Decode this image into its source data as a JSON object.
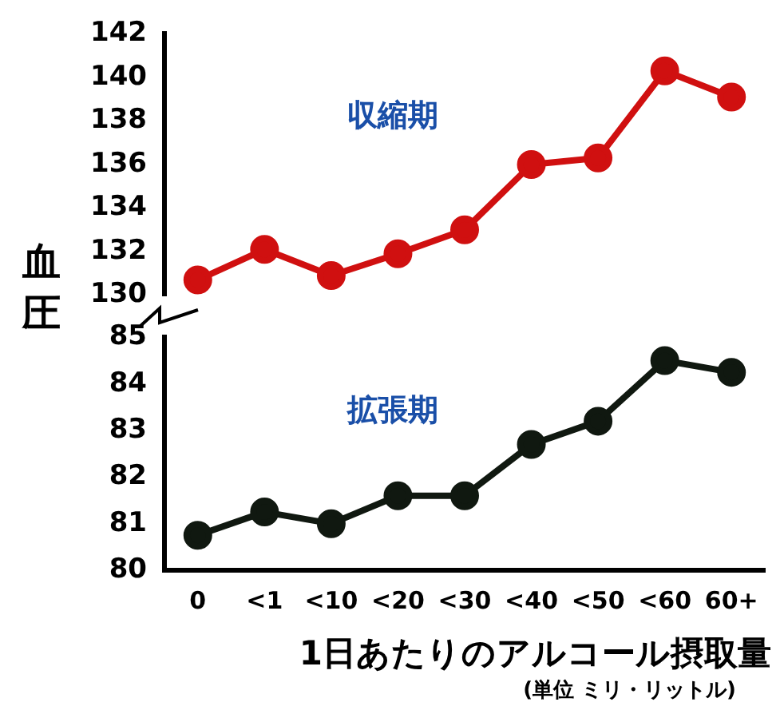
{
  "chart_data": [
    {
      "type": "line",
      "ylabel": "血圧",
      "categories": [
        null,
        null,
        null,
        null,
        null,
        null,
        null,
        null,
        null
      ],
      "ylim": [
        130,
        142
      ],
      "yticks": [
        130,
        132,
        134,
        136,
        138,
        140,
        142
      ],
      "tick_labels": "y",
      "grid": false,
      "legend": false,
      "marker": "circle",
      "line_style": "solid",
      "series": [
        {
          "name": "収縮期",
          "color": "#d01010",
          "values": [
            130.7,
            132.1,
            130.9,
            131.9,
            133.0,
            136.0,
            136.3,
            140.3,
            139.1
          ]
        }
      ]
    },
    {
      "type": "line",
      "xlabel": "1日あたりのアルコール摂取量",
      "annotations": [
        "(単位 ミリ・リットル)"
      ],
      "categories": [
        "0",
        "<1",
        "<10",
        "<20",
        "<30",
        "<40",
        "<50",
        "<60",
        "60+"
      ],
      "ylim": [
        80,
        85
      ],
      "yticks": [
        80,
        81,
        82,
        83,
        84,
        85
      ],
      "grid": false,
      "legend": false,
      "marker": "circle",
      "line_style": "solid",
      "series": [
        {
          "name": "拡張期",
          "color": "#101810",
          "values": [
            80.75,
            81.25,
            81.0,
            81.6,
            81.6,
            82.7,
            83.2,
            84.5,
            84.25
          ]
        }
      ]
    }
  ]
}
